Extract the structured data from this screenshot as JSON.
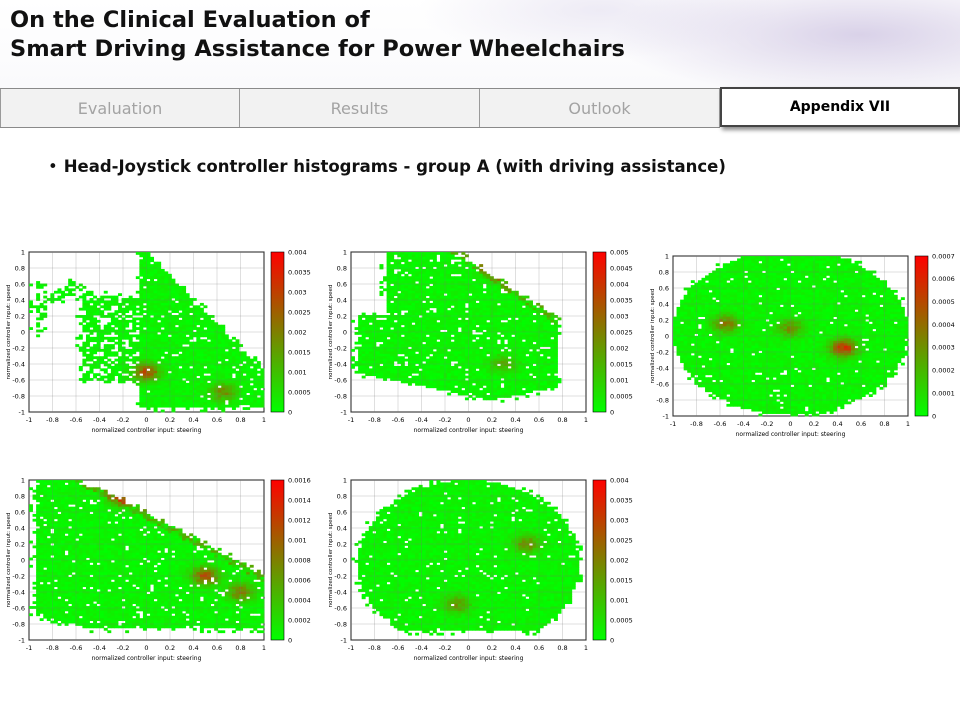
{
  "header": {
    "title_line1": "On the Clinical Evaluation of",
    "title_line2": "Smart Driving Assistance for Power Wheelchairs"
  },
  "nav": {
    "tabs": [
      {
        "label": "Evaluation"
      },
      {
        "label": "Results"
      },
      {
        "label": "Outlook"
      }
    ],
    "active_tab": "Appendix VII"
  },
  "content": {
    "bullet": "Head-Joystick controller histograms - group A (with driving assistance)"
  },
  "colors": {
    "low": "#00ff00",
    "high": "#ff0000",
    "mid": "#7f7f00"
  },
  "chart_data": [
    {
      "type": "heatmap",
      "xlabel": "normalized controller input: steering",
      "ylabel": "normalized controller input: speed",
      "xlim": [
        -1,
        1
      ],
      "ylim": [
        -1,
        1
      ],
      "xticks": [
        "-1",
        "-0.8",
        "-0.6",
        "-0.4",
        "-0.2",
        "0",
        "0.2",
        "0.4",
        "0.6",
        "0.8",
        "1"
      ],
      "yticks": [
        "1",
        "0.8",
        "0.6",
        "0.4",
        "0.2",
        "0",
        "-0.2",
        "-0.4",
        "-0.6",
        "-0.8",
        "-1"
      ],
      "colorbar_ticks": [
        "0.004",
        "0.0035",
        "0.003",
        "0.0025",
        "0.002",
        "0.0015",
        "0.001",
        "0.0005",
        "0"
      ],
      "colorbar_range": [
        0,
        0.004
      ],
      "grid": true,
      "shape": "fan-down-right",
      "hotspots": [
        {
          "x": 0.0,
          "y": -0.5,
          "v": 0.8
        },
        {
          "x": 0.65,
          "y": -0.75,
          "v": 0.5
        }
      ]
    },
    {
      "type": "heatmap",
      "xlabel": "normalized controller input: steering",
      "ylabel": "normalized controller input: speed",
      "xlim": [
        -1,
        1
      ],
      "ylim": [
        -1,
        1
      ],
      "xticks": [
        "-1",
        "-0.8",
        "-0.6",
        "-0.4",
        "-0.2",
        "0",
        "0.2",
        "0.4",
        "0.6",
        "0.8",
        "1"
      ],
      "yticks": [
        "1",
        "0.8",
        "0.6",
        "0.4",
        "0.2",
        "0",
        "-0.2",
        "-0.4",
        "-0.6",
        "-0.8",
        "-1"
      ],
      "colorbar_ticks": [
        "0.005",
        "0.0045",
        "0.004",
        "0.0035",
        "0.003",
        "0.0025",
        "0.002",
        "0.0015",
        "0.001",
        "0.0005",
        "0"
      ],
      "colorbar_range": [
        0,
        0.005
      ],
      "grid": true,
      "shape": "upper-diagonal",
      "hotspots": [
        {
          "x": 0.25,
          "y": 0.8,
          "v": 1.0
        },
        {
          "x": 0.3,
          "y": -0.4,
          "v": 0.35
        }
      ]
    },
    {
      "type": "heatmap",
      "xlabel": "normalized controller input: steering",
      "ylabel": "normalized controller input: speed",
      "xlim": [
        -1,
        1
      ],
      "ylim": [
        -1,
        1
      ],
      "xticks": [
        "-1",
        "-0.8",
        "-0.6",
        "-0.4",
        "-0.2",
        "0",
        "0.2",
        "0.4",
        "0.6",
        "0.8",
        "1"
      ],
      "yticks": [
        "1",
        "0.8",
        "0.6",
        "0.4",
        "0.2",
        "0",
        "-0.2",
        "-0.4",
        "-0.6",
        "-0.8",
        "-1"
      ],
      "colorbar_ticks": [
        "0.0007",
        "0.0006",
        "0.0005",
        "0.0004",
        "0.0003",
        "0.0002",
        "0.0001",
        "0"
      ],
      "colorbar_range": [
        0,
        0.0007
      ],
      "grid": true,
      "shape": "full-ellipse",
      "hotspots": [
        {
          "x": 0.45,
          "y": -0.15,
          "v": 0.9
        },
        {
          "x": -0.55,
          "y": 0.15,
          "v": 0.6
        },
        {
          "x": 0.0,
          "y": 0.1,
          "v": 0.5
        }
      ]
    },
    {
      "type": "heatmap",
      "xlabel": "normalized controller input: steering",
      "ylabel": "normalized controller input: speed",
      "xlim": [
        -1,
        1
      ],
      "ylim": [
        -1,
        1
      ],
      "xticks": [
        "-1",
        "-0.8",
        "-0.6",
        "-0.4",
        "-0.2",
        "0",
        "0.2",
        "0.4",
        "0.6",
        "0.8",
        "1"
      ],
      "yticks": [
        "1",
        "0.8",
        "0.6",
        "0.4",
        "0.2",
        "0",
        "-0.2",
        "-0.4",
        "-0.6",
        "-0.8",
        "-1"
      ],
      "colorbar_ticks": [
        "0.0016",
        "0.0014",
        "0.0012",
        "0.001",
        "0.0008",
        "0.0006",
        "0.0004",
        "0.0002",
        "0"
      ],
      "colorbar_range": [
        0,
        0.0016
      ],
      "grid": true,
      "shape": "diagonal-band",
      "hotspots": [
        {
          "x": -0.2,
          "y": 0.8,
          "v": 0.9
        },
        {
          "x": 0.5,
          "y": -0.2,
          "v": 0.8
        },
        {
          "x": 0.8,
          "y": -0.4,
          "v": 0.6
        }
      ]
    },
    {
      "type": "heatmap",
      "xlabel": "normalized controller input: steering",
      "ylabel": "normalized controller input: speed",
      "xlim": [
        -1,
        1
      ],
      "ylim": [
        -1,
        1
      ],
      "xticks": [
        "-1",
        "-0.8",
        "-0.6",
        "-0.4",
        "-0.2",
        "0",
        "0.2",
        "0.4",
        "0.6",
        "0.8",
        "1"
      ],
      "yticks": [
        "1",
        "0.8",
        "0.6",
        "0.4",
        "0.2",
        "0",
        "-0.2",
        "-0.4",
        "-0.6",
        "-0.8",
        "-1"
      ],
      "colorbar_ticks": [
        "0.004",
        "0.0035",
        "0.003",
        "0.0025",
        "0.002",
        "0.0015",
        "0.001",
        "0.0005",
        "0"
      ],
      "colorbar_range": [
        0,
        0.004
      ],
      "grid": true,
      "shape": "dome",
      "hotspots": [
        {
          "x": 0.5,
          "y": 0.2,
          "v": 0.5
        },
        {
          "x": -0.1,
          "y": -0.55,
          "v": 0.45
        }
      ]
    }
  ]
}
